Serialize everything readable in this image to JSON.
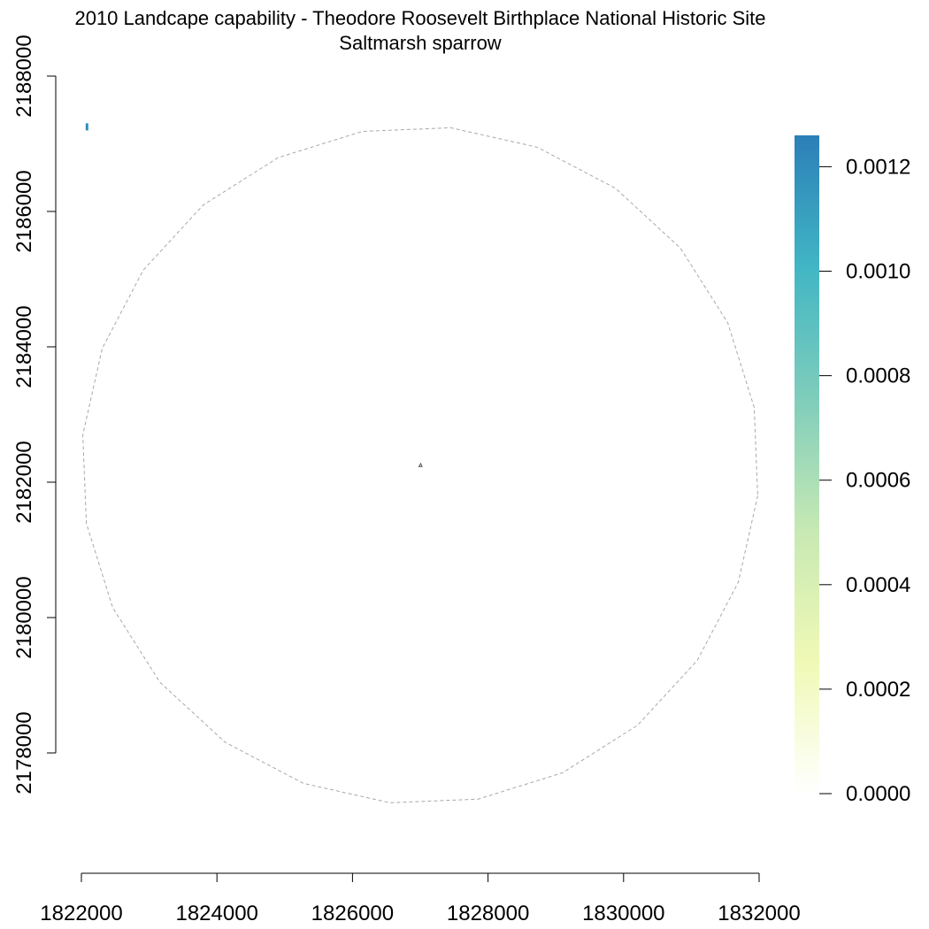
{
  "title": "2010 Landcape capability - Theodore Roosevelt Birthplace National Historic Site",
  "subtitle": "Saltmarsh sparrow",
  "chart_data": {
    "type": "heatmap",
    "title": "2010 Landcape capability - Theodore Roosevelt Birthplace National Historic Site",
    "subtitle": "Saltmarsh sparrow",
    "xlabel": "",
    "ylabel": "",
    "xlim": [
      1822000,
      1832000
    ],
    "ylim": [
      2177000,
      2188000
    ],
    "x_ticks": [
      1822000,
      1824000,
      1826000,
      1828000,
      1830000,
      1832000
    ],
    "y_ticks": [
      2178000,
      2180000,
      2182000,
      2184000,
      2186000,
      2188000
    ],
    "x_tick_labels": [
      "1822000",
      "1824000",
      "1826000",
      "1828000",
      "1830000",
      "1832000"
    ],
    "y_tick_labels": [
      "2178000",
      "2180000",
      "2182000",
      "2184000",
      "2186000",
      "2188000"
    ],
    "legend": {
      "placement": "right",
      "min": 0,
      "max": 0.00126,
      "ticks": [
        0.0,
        0.0002,
        0.0004,
        0.0006,
        0.0008,
        0.001,
        0.0012
      ],
      "tick_labels": [
        "0.0000",
        "0.0002",
        "0.0004",
        "0.0006",
        "0.0008",
        "0.0010",
        "0.0012"
      ],
      "colors": [
        "#ffffff",
        "#f0f9b5",
        "#c7e9b4",
        "#7fcdbb",
        "#41b6c4",
        "#2c7fb8"
      ]
    },
    "cells": [
      {
        "x": 1822050,
        "y": 2187250,
        "value": 0.0012
      }
    ],
    "buffer_center": [
      1827000,
      2182250
    ],
    "buffer_radius": 5000,
    "site_location": [
      1827000,
      2182250
    ]
  }
}
